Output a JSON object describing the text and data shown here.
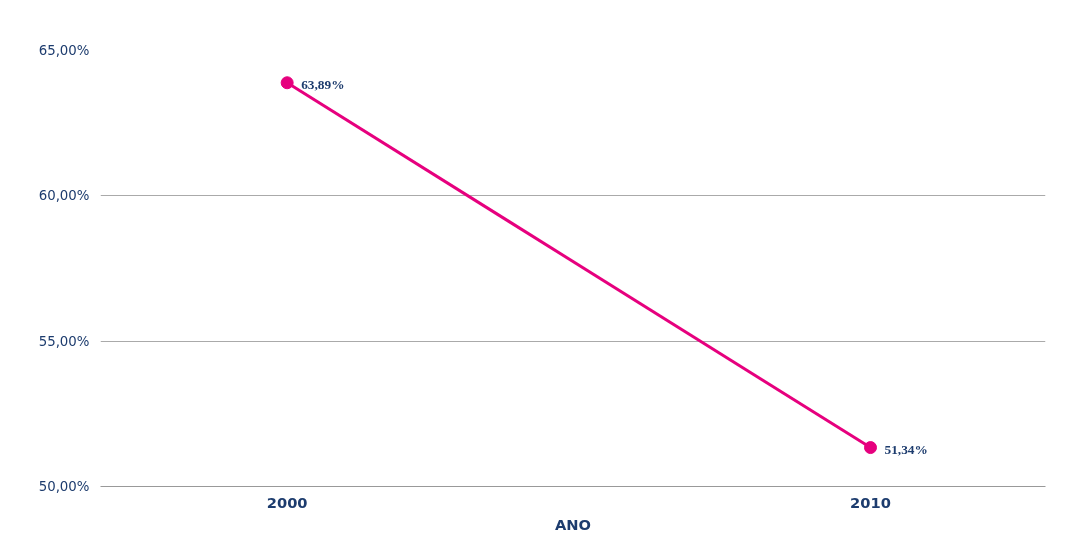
{
  "chart_data": {
    "type": "line",
    "xlabel": "ANO",
    "categories": [
      "2000",
      "2010"
    ],
    "series": [
      {
        "color": "#e6007e",
        "values": [
          63.89,
          51.34
        ],
        "value_labels": [
          "63,89%",
          "51,34%"
        ]
      }
    ],
    "ylim": [
      50,
      65
    ],
    "yticks": [
      {
        "value": 50,
        "label": "50,00%"
      },
      {
        "value": 55,
        "label": "55,00%"
      },
      {
        "value": 60,
        "label": "60,00%"
      },
      {
        "value": 65,
        "label": "65,00%"
      }
    ],
    "grid": "y",
    "marker": "circle",
    "line_style": "solid"
  }
}
